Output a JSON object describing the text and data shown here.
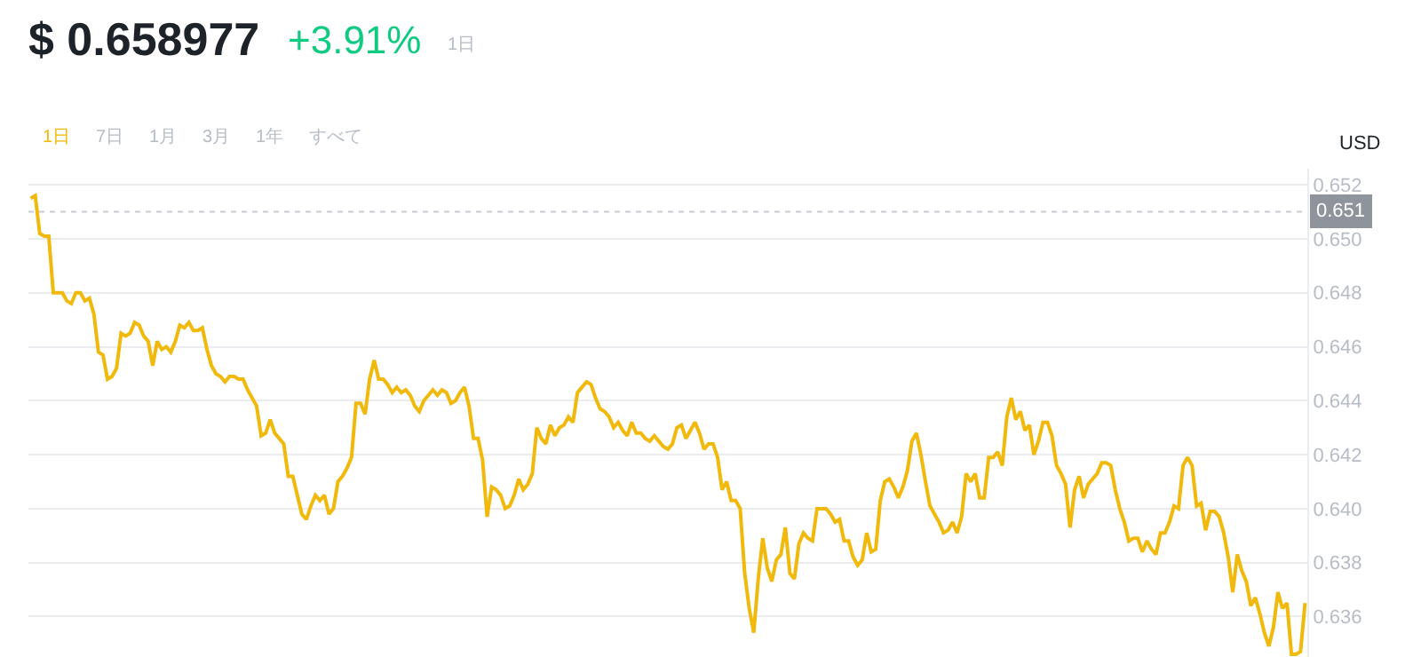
{
  "chart_data": {
    "type": "line",
    "title": "$ 0.658977",
    "subtitle": "+3.91%",
    "ylabel": "USD",
    "annotations": [
      "1日",
      "1日",
      "7日",
      "1月",
      "3月",
      "1年",
      "すべて"
    ],
    "categories": [
      null,
      null,
      null,
      null,
      null,
      null,
      null,
      null,
      null,
      null,
      null,
      null,
      null,
      null,
      null,
      null,
      null,
      null,
      null,
      null,
      null,
      null,
      null,
      null,
      null,
      null,
      null,
      null,
      null,
      null,
      null,
      null,
      null,
      null,
      null,
      null,
      null,
      null,
      null,
      null,
      null,
      null,
      null,
      null,
      null,
      null,
      null,
      null,
      null,
      null,
      null,
      null,
      null,
      null,
      null,
      null,
      null,
      null,
      null,
      null,
      null,
      null,
      null,
      null,
      null,
      null,
      null,
      null,
      null,
      null,
      null,
      null,
      null,
      null,
      null,
      null,
      null,
      null,
      null,
      null,
      null,
      null,
      null,
      null,
      null,
      null,
      null,
      null,
      null,
      null,
      null,
      null,
      null,
      null,
      null,
      null,
      null,
      null,
      null,
      null,
      null,
      null,
      null,
      null,
      null,
      null,
      null,
      null,
      null,
      null,
      null,
      null,
      null,
      null,
      null,
      null,
      null,
      null,
      null,
      null,
      null,
      null,
      null,
      null,
      null,
      null,
      null,
      null,
      null,
      null,
      null,
      null,
      null,
      null,
      null,
      null,
      null,
      null,
      null,
      null,
      null,
      null,
      null,
      null,
      null,
      null,
      null,
      null,
      null,
      null,
      null,
      null,
      null,
      null,
      null,
      null,
      null,
      null,
      null,
      null,
      null,
      null,
      null,
      null,
      null,
      null,
      null,
      null,
      null,
      null,
      null,
      null,
      null,
      null,
      null,
      null,
      null,
      null,
      null,
      null,
      null,
      null,
      null,
      null,
      null,
      null,
      null,
      null,
      null,
      null,
      null,
      null,
      null,
      null,
      null,
      null,
      null,
      null,
      null,
      null,
      null,
      null,
      null,
      null,
      null,
      null,
      null,
      null,
      null,
      null,
      null,
      null,
      null,
      null,
      null,
      null,
      null,
      null,
      null,
      null,
      null,
      null,
      null,
      null,
      null,
      null,
      null,
      null,
      null,
      null,
      null,
      null,
      null,
      null,
      null,
      null,
      null,
      null,
      null,
      null,
      null,
      null,
      null,
      null,
      null,
      null,
      null,
      null,
      null,
      null,
      null,
      null,
      null,
      null,
      null,
      null,
      null,
      null,
      null,
      null,
      null,
      null,
      null,
      null,
      null,
      null,
      null,
      null,
      null,
      null,
      null,
      null,
      null,
      null,
      null,
      null,
      null,
      null,
      null,
      null,
      null,
      null,
      null
    ],
    "series": [
      {
        "color": "#f0b90b",
        "values": [
          0.6515,
          0.6516,
          0.6502,
          0.6501,
          0.6501,
          0.648,
          0.648,
          0.648,
          0.6477,
          0.6476,
          0.648,
          0.648,
          0.6477,
          0.6478,
          0.6472,
          0.6458,
          0.6457,
          0.6448,
          0.6449,
          0.6452,
          0.6465,
          0.6464,
          0.6465,
          0.6469,
          0.6468,
          0.6464,
          0.6462,
          0.6453,
          0.6462,
          0.6459,
          0.646,
          0.6458,
          0.6462,
          0.6468,
          0.6467,
          0.6469,
          0.6466,
          0.6466,
          0.6467,
          0.6459,
          0.6453,
          0.645,
          0.6449,
          0.6447,
          0.6449,
          0.6449,
          0.6448,
          0.6448,
          0.6444,
          0.6441,
          0.6438,
          0.6427,
          0.6428,
          0.6433,
          0.6428,
          0.6426,
          0.6424,
          0.6412,
          0.6412,
          0.6405,
          0.6398,
          0.6396,
          0.6401,
          0.6405,
          0.6403,
          0.6405,
          0.6398,
          0.64,
          0.641,
          0.6412,
          0.6415,
          0.6419,
          0.6439,
          0.6439,
          0.6435,
          0.6448,
          0.6455,
          0.6448,
          0.6448,
          0.6446,
          0.6443,
          0.6445,
          0.6443,
          0.6444,
          0.6442,
          0.6438,
          0.6436,
          0.644,
          0.6442,
          0.6444,
          0.6442,
          0.6444,
          0.6443,
          0.6439,
          0.644,
          0.6443,
          0.6445,
          0.6438,
          0.6426,
          0.6426,
          0.6418,
          0.6397,
          0.6408,
          0.6407,
          0.6405,
          0.64,
          0.6401,
          0.6405,
          0.6411,
          0.6407,
          0.6409,
          0.6413,
          0.643,
          0.6426,
          0.6424,
          0.6431,
          0.6427,
          0.643,
          0.6431,
          0.6434,
          0.6432,
          0.6443,
          0.6445,
          0.6447,
          0.6446,
          0.6441,
          0.6437,
          0.6436,
          0.6434,
          0.643,
          0.6432,
          0.6429,
          0.6427,
          0.6432,
          0.6428,
          0.6428,
          0.6426,
          0.6425,
          0.6427,
          0.6425,
          0.6423,
          0.6422,
          0.6424,
          0.643,
          0.6431,
          0.6426,
          0.6429,
          0.6432,
          0.6428,
          0.6422,
          0.6424,
          0.6424,
          0.6419,
          0.6407,
          0.641,
          0.6403,
          0.6403,
          0.64,
          0.6376,
          0.6363,
          0.6354,
          0.6374,
          0.6389,
          0.6378,
          0.6373,
          0.6381,
          0.6383,
          0.6393,
          0.6376,
          0.6374,
          0.6387,
          0.6391,
          0.6389,
          0.6388,
          0.64,
          0.64,
          0.64,
          0.6398,
          0.6395,
          0.6396,
          0.6388,
          0.6388,
          0.6382,
          0.6379,
          0.6381,
          0.6391,
          0.6384,
          0.6385,
          0.6403,
          0.641,
          0.6411,
          0.6408,
          0.6404,
          0.6408,
          0.6414,
          0.6425,
          0.6428,
          0.642,
          0.641,
          0.6401,
          0.6398,
          0.6395,
          0.6391,
          0.6392,
          0.6395,
          0.6391,
          0.6397,
          0.6413,
          0.641,
          0.6413,
          0.6404,
          0.6404,
          0.6419,
          0.6419,
          0.6421,
          0.6416,
          0.6434,
          0.6441,
          0.6433,
          0.6436,
          0.6429,
          0.6431,
          0.642,
          0.6425,
          0.6432,
          0.6432,
          0.6427,
          0.6416,
          0.6413,
          0.6409,
          0.6393,
          0.6407,
          0.6412,
          0.6404,
          0.6409,
          0.6411,
          0.6413,
          0.6417,
          0.6417,
          0.6416,
          0.6407,
          0.64,
          0.6395,
          0.6388,
          0.6389,
          0.6389,
          0.6384,
          0.6388,
          0.6385,
          0.6383,
          0.6391,
          0.6391,
          0.6395,
          0.6401,
          0.64,
          0.6416,
          0.6419,
          0.6416,
          0.6401,
          0.6402,
          0.6392,
          0.6399,
          0.6399,
          0.6397,
          0.6391,
          0.6382,
          0.6369,
          0.6383,
          0.6377,
          0.6373,
          0.6364,
          0.6367,
          0.6361,
          0.6354,
          0.6349,
          0.6356,
          0.6369,
          0.6363,
          0.6365,
          0.6346,
          0.6346,
          0.6347,
          0.6365
        ]
      }
    ],
    "ylim": [
      0.6345,
      0.6526
    ],
    "yticks": [
      {
        "value": 0.636,
        "label": "0.636"
      },
      {
        "value": 0.638,
        "label": "0.638"
      },
      {
        "value": 0.64,
        "label": "0.640"
      },
      {
        "value": 0.642,
        "label": "0.642"
      },
      {
        "value": 0.644,
        "label": "0.644"
      },
      {
        "value": 0.646,
        "label": "0.646"
      },
      {
        "value": 0.648,
        "label": "0.648"
      },
      {
        "value": 0.65,
        "label": "0.650"
      },
      {
        "value": 0.652,
        "label": "0.652"
      }
    ],
    "ref_lines": [
      {
        "axis": "y",
        "value": 0.651,
        "label": "0.651",
        "color": "#c7cbd1",
        "line_style": "dotted"
      }
    ],
    "grid": "y",
    "tick_labels": "y"
  }
}
